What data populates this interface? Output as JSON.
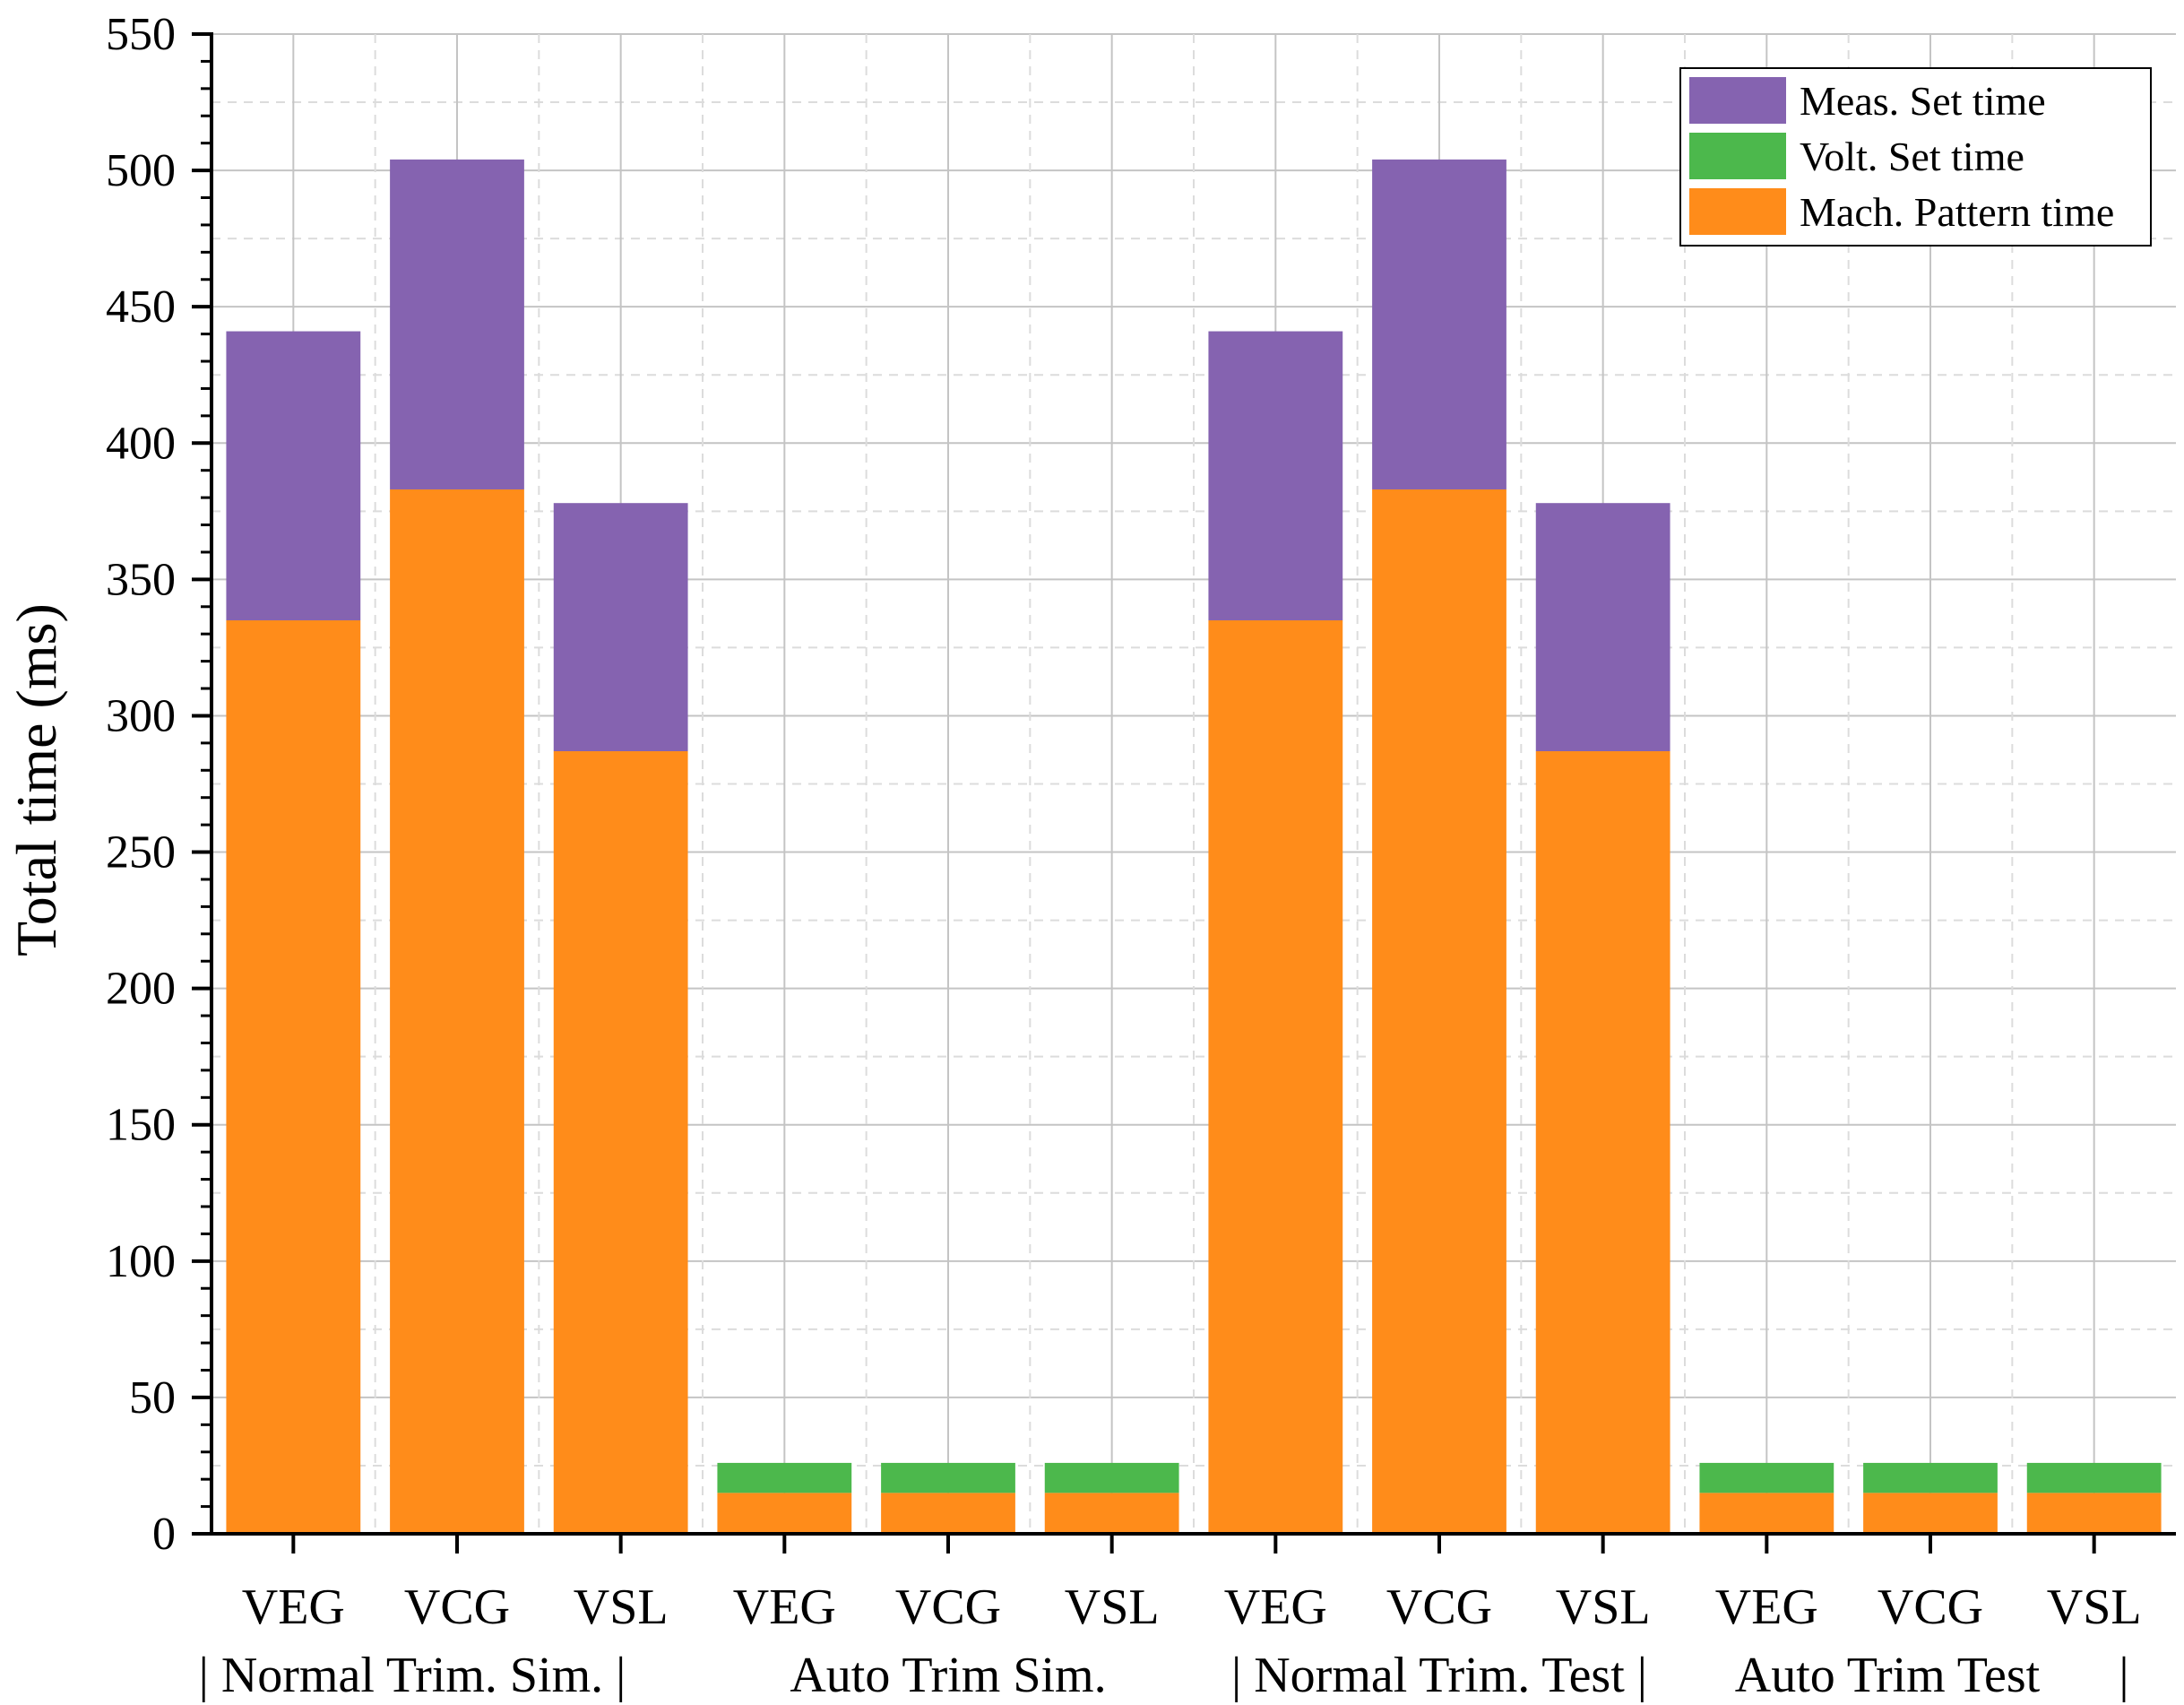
{
  "chart_data": {
    "type": "bar",
    "stacked": true,
    "title": "",
    "xlabel": "",
    "ylabel": "Total time (ms)",
    "ylim": [
      0,
      550
    ],
    "yticks": [
      0,
      50,
      100,
      150,
      200,
      250,
      300,
      350,
      400,
      450,
      500,
      550
    ],
    "grid": true,
    "legend_position": "top-right",
    "categories": [
      "VEG",
      "VCG",
      "VSL",
      "VEG",
      "VCG",
      "VSL",
      "VEG",
      "VCG",
      "VSL",
      "VEG",
      "VCG",
      "VSL"
    ],
    "group_labels": [
      "| Normal Trim. Sim. |",
      "Auto Trim Sim.",
      "|  Normal Trim. Test  |",
      "Auto Trim Test",
      "|"
    ],
    "series": [
      {
        "name": "Mach. Pattern time",
        "color": "#ff8c1a",
        "values": [
          335,
          383,
          287,
          15,
          15,
          15,
          335,
          383,
          287,
          15,
          15,
          15
        ]
      },
      {
        "name": "Volt. Set time",
        "color": "#4cb84c",
        "values": [
          0,
          0,
          0,
          11,
          11,
          11,
          0,
          0,
          0,
          11,
          11,
          11
        ]
      },
      {
        "name": "Meas. Set time",
        "color": "#8563b0",
        "values": [
          106,
          121,
          91,
          0,
          0,
          0,
          106,
          121,
          91,
          0,
          0,
          0
        ]
      }
    ],
    "legend_order": [
      "Meas. Set time",
      "Volt. Set time",
      "Mach. Pattern time"
    ]
  }
}
